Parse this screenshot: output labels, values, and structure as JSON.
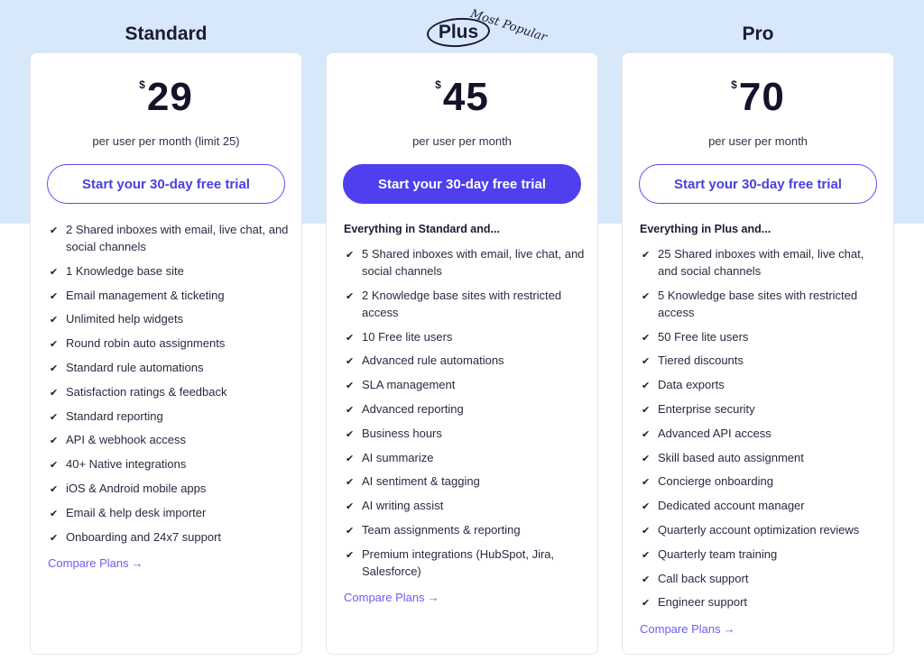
{
  "plans": [
    {
      "name": "Standard",
      "currency": "$",
      "price": "29",
      "per": "per user per month (limit 25)",
      "cta": "Start your 30-day free trial",
      "heading": "",
      "features": [
        "2 Shared inboxes with email, live chat, and social channels",
        "1 Knowledge base site",
        "Email management & ticketing",
        "Unlimited help widgets",
        "Round robin auto assignments",
        "Standard rule automations",
        "Satisfaction ratings & feedback",
        "Standard reporting",
        "API & webhook access",
        "40+ Native integrations",
        "iOS & Android mobile apps",
        "Email & help desk importer",
        "Onboarding and 24x7 support"
      ],
      "compare": "Compare Plans",
      "arrow": "→"
    },
    {
      "name": "Plus",
      "badge": "Most Popular",
      "currency": "$",
      "price": "45",
      "per": "per user per month",
      "cta": "Start your 30-day free trial",
      "heading": "Everything in Standard and...",
      "features": [
        "5 Shared inboxes with email, live chat, and social channels",
        "2 Knowledge base sites with restricted access",
        "10 Free lite users",
        "Advanced rule automations",
        "SLA management",
        "Advanced reporting",
        "Business hours",
        "AI summarize",
        "AI sentiment & tagging",
        "AI writing assist",
        "Team assignments & reporting",
        "Premium integrations (HubSpot, Jira, Salesforce)"
      ],
      "compare": "Compare Plans",
      "arrow": "→"
    },
    {
      "name": "Pro",
      "currency": "$",
      "price": "70",
      "per": "per user per month",
      "cta": "Start your 30-day free trial",
      "heading": "Everything in Plus and...",
      "features": [
        "25 Shared inboxes with email, live chat, and social channels",
        "5 Knowledge base sites with restricted access",
        "50 Free lite users",
        "Tiered discounts",
        "Data exports",
        "Enterprise security",
        "Advanced API access",
        "Skill based auto assignment",
        "Concierge onboarding",
        "Dedicated account manager",
        "Quarterly account optimization reviews",
        "Quarterly team training",
        "Call back support",
        "Engineer support"
      ],
      "compare": "Compare Plans",
      "arrow": "→"
    }
  ],
  "check_glyph": "✔",
  "colors": {
    "accent": "#4e40ee",
    "link": "#6a5ef0",
    "top_background": "#d8e8fb",
    "text": "#1c1b33"
  }
}
